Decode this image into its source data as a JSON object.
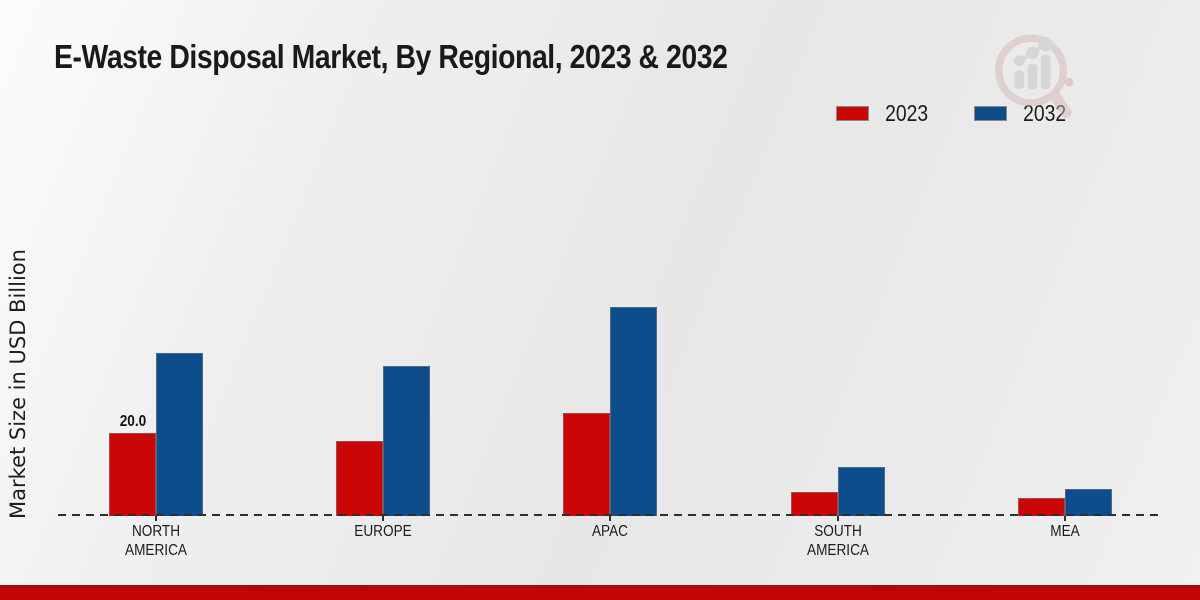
{
  "title": "E-Waste Disposal Market, By Regional, 2023 & 2032",
  "y_axis": {
    "label": "Market Size in USD Billion"
  },
  "legend": {
    "position": "top-right",
    "items": [
      {
        "label": "2023",
        "color": "#cb0606"
      },
      {
        "label": "2032",
        "color": "#0e4d8c"
      }
    ]
  },
  "watermark": {
    "name": "market-research-future-logo"
  },
  "footer": {
    "color": "#c30505"
  },
  "chart_data": {
    "type": "bar",
    "title": "E-Waste Disposal Market, By Regional, 2023 & 2032",
    "ylabel": "Market Size in USD Billion",
    "categories": [
      "NORTH AMERICA",
      "EUROPE",
      "APAC",
      "SOUTH AMERICA",
      "MEA"
    ],
    "series": [
      {
        "name": "2023",
        "color": "#cb0606",
        "values": [
          20.0,
          18.1,
          24.8,
          5.8,
          4.3
        ]
      },
      {
        "name": "2032",
        "color": "#0e4d8c",
        "values": [
          39.3,
          36.1,
          50.3,
          11.8,
          6.6
        ]
      }
    ],
    "data_labels": [
      {
        "series_index": 0,
        "category_index": 0,
        "text": "20.0"
      }
    ],
    "ylim": [
      0,
      55
    ],
    "grid": false,
    "x_axis_style": "dashed-baseline",
    "legend_position": "top-right"
  }
}
